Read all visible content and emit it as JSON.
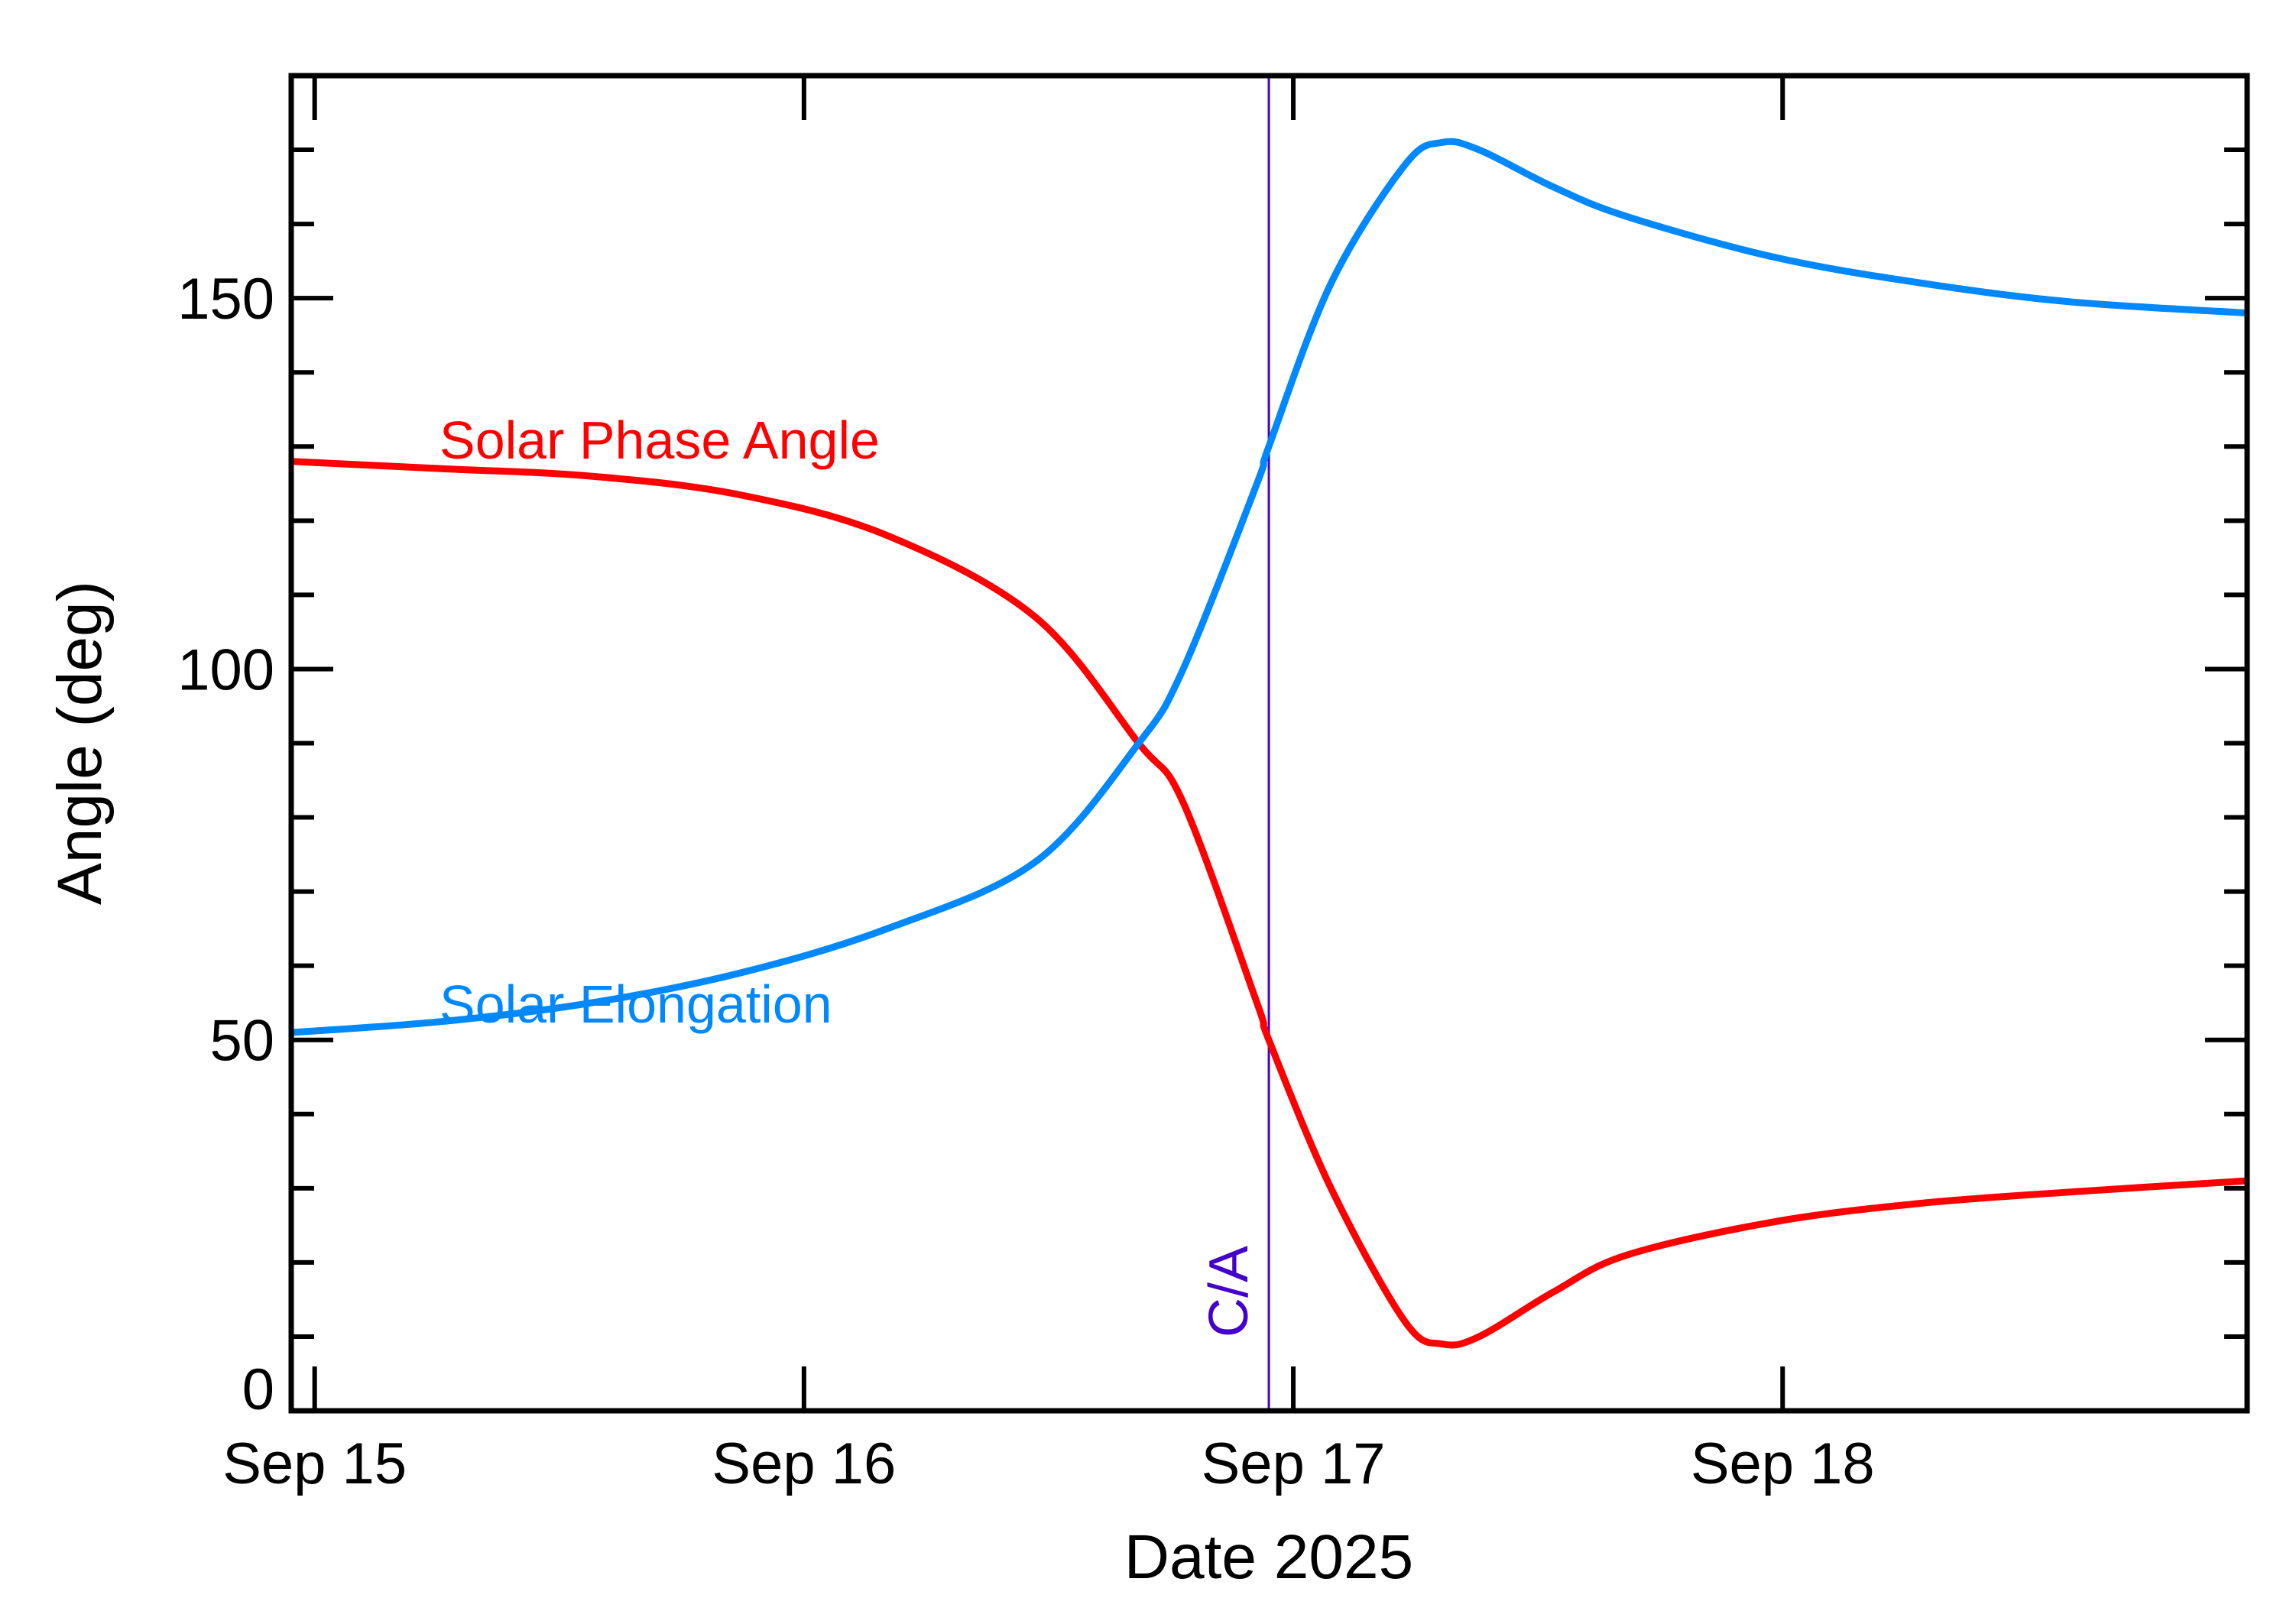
{
  "chart_data": {
    "type": "line",
    "xlabel": "Date 2025",
    "ylabel": "Angle (deg)",
    "xlim": [
      "2025-09-14 22:51",
      "2025-09-18 22:47"
    ],
    "ylim": [
      0,
      180
    ],
    "x_ticks": [
      {
        "date": "2025-09-15 00:00",
        "label": "Sep 15"
      },
      {
        "date": "2025-09-16 00:00",
        "label": "Sep 16"
      },
      {
        "date": "2025-09-17 00:00",
        "label": "Sep 17"
      },
      {
        "date": "2025-09-18 00:00",
        "label": "Sep 18"
      }
    ],
    "y_ticks": [
      {
        "value": 0,
        "label": "0"
      },
      {
        "value": 50,
        "label": "50"
      },
      {
        "value": 100,
        "label": "100"
      },
      {
        "value": 150,
        "label": "150"
      }
    ],
    "y_minor_step": 10,
    "grid": false,
    "x": [
      "2025-09-14 22:51",
      "2025-09-15 06:19",
      "2025-09-15 13:34",
      "2025-09-15 20:50",
      "2025-09-16 04:05",
      "2025-09-16 11:21",
      "2025-09-16 16:25",
      "2025-09-16 18:36",
      "2025-09-16 22:13",
      "2025-09-16 22:48",
      "2025-09-17 01:51",
      "2025-09-17 05:29",
      "2025-09-17 07:18",
      "2025-09-17 09:07",
      "2025-09-17 12:45",
      "2025-09-17 16:22",
      "2025-09-17 23:38",
      "2025-09-18 06:53",
      "2025-09-18 14:08",
      "2025-09-18 22:47"
    ],
    "series": [
      {
        "name": "Solar Phase Angle",
        "color": "#ff0000",
        "values": [
          128,
          127,
          126,
          123.5,
          118,
          107,
          90,
          82,
          55,
          50,
          30,
          12,
          9,
          10,
          16,
          21,
          25.5,
          28,
          29.5,
          31
        ]
      },
      {
        "name": "Solar Elongation",
        "color": "#0088ff",
        "values": [
          51,
          52.5,
          55,
          59,
          65,
          74,
          90,
          100,
          125,
          130,
          152,
          168,
          171,
          170,
          165,
          161,
          155.5,
          152,
          149.5,
          148
        ]
      }
    ],
    "annotations": [
      {
        "text": "C/A",
        "date": "2025-09-16 22:48",
        "color": "#4400cc",
        "type": "vertical-line"
      }
    ]
  }
}
